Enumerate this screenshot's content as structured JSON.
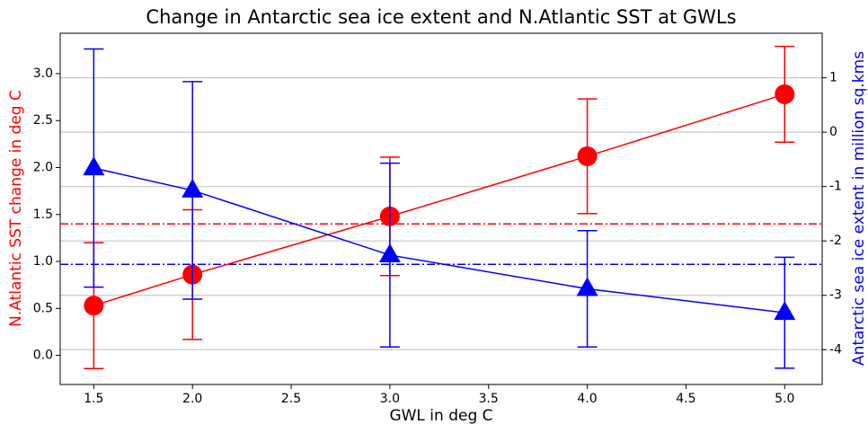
{
  "chart_data": {
    "type": "line",
    "title": "Change in Antarctic sea ice extent and N.Atlantic SST at GWLs",
    "x_label": "GWL in deg C",
    "y_label": "N.Atlantic SST change in deg C",
    "y2_label": "Antarctic sea ice extent in million sq.kms",
    "y_label_color": "#ff0000",
    "y2_label_color": "#0000ff",
    "x": [
      1.5,
      2.0,
      3.0,
      4.0,
      5.0
    ],
    "xlim": [
      1.33,
      5.19
    ],
    "xticks": [
      {
        "value": 1.5,
        "label": "1.5"
      },
      {
        "value": 2.0,
        "label": "2.0"
      },
      {
        "value": 2.5,
        "label": "2.5"
      },
      {
        "value": 3.0,
        "label": "3.0"
      },
      {
        "value": 3.5,
        "label": "3.5"
      },
      {
        "value": 4.0,
        "label": "4.0"
      },
      {
        "value": 4.5,
        "label": "4.5"
      },
      {
        "value": 5.0,
        "label": "5.0"
      }
    ],
    "ylim": [
      -0.31,
      3.43
    ],
    "yticks": [
      {
        "value": 0,
        "label": "0.0"
      },
      0.5,
      {
        "value": 1,
        "label": "1.0"
      },
      1.5,
      {
        "value": 2,
        "label": "2.0"
      },
      2.5,
      {
        "value": 3,
        "label": "3.0"
      }
    ],
    "y2lim": [
      -4.64,
      1.82
    ],
    "y2ticks": [
      -4,
      -3,
      -2,
      -1,
      0,
      1
    ],
    "grid_axis": "y2",
    "series": [
      {
        "color": "#ff0000",
        "marker": "circle",
        "values": [
          0.53,
          0.86,
          1.48,
          2.12,
          2.78
        ],
        "errors": [
          0.67,
          0.69,
          0.63,
          0.61,
          0.51
        ]
      },
      {
        "color": "#0000ff",
        "marker": "triangle",
        "axis": "y2",
        "values": [
          -0.66,
          -1.07,
          -2.26,
          -2.88,
          -3.32
        ],
        "errors": [
          2.19,
          2.0,
          1.69,
          1.07,
          1.02
        ]
      }
    ],
    "hlines": [
      {
        "value": 1.4,
        "color": "#ff0000"
      },
      {
        "value": -2.43,
        "color": "#0000ff",
        "axis": "y2"
      }
    ]
  }
}
